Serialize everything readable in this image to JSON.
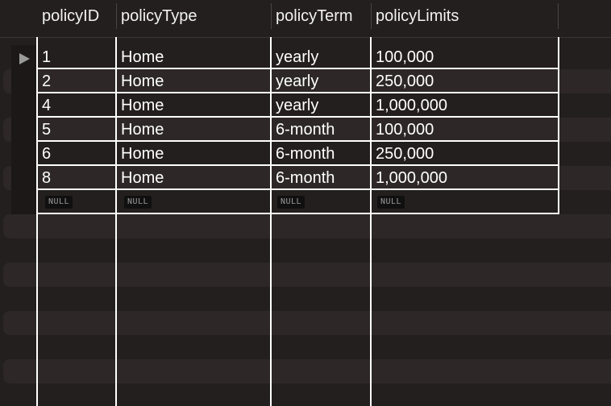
{
  "columns": [
    {
      "key": "policyID",
      "label": "policyID"
    },
    {
      "key": "policyType",
      "label": "policyType"
    },
    {
      "key": "policyTerm",
      "label": "policyTerm"
    },
    {
      "key": "policyLimits",
      "label": "policyLimits"
    }
  ],
  "rows": [
    {
      "policyID": "1",
      "policyType": "Home",
      "policyTerm": "yearly",
      "policyLimits": "100,000"
    },
    {
      "policyID": "2",
      "policyType": "Home",
      "policyTerm": "yearly",
      "policyLimits": "250,000"
    },
    {
      "policyID": "4",
      "policyType": "Home",
      "policyTerm": "yearly",
      "policyLimits": "1,000,000"
    },
    {
      "policyID": "5",
      "policyType": "Home",
      "policyTerm": "6-month",
      "policyLimits": "100,000"
    },
    {
      "policyID": "6",
      "policyType": "Home",
      "policyTerm": "6-month",
      "policyLimits": "250,000"
    },
    {
      "policyID": "8",
      "policyType": "Home",
      "policyTerm": "6-month",
      "policyLimits": "1,000,000"
    }
  ],
  "null_row": {
    "label": "NULL"
  },
  "selected_row": 0,
  "colors": {
    "background": "#231f1e",
    "alt_row": "#2d2827",
    "grid_line": "#ffffff",
    "text": "#ffffff",
    "null_text": "#9a9a9a"
  }
}
